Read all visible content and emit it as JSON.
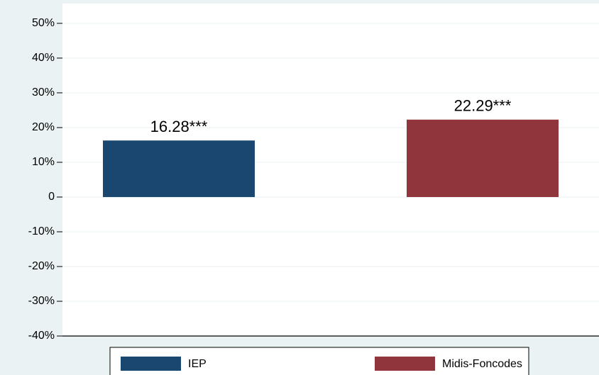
{
  "chart_data": {
    "type": "bar",
    "series": [
      {
        "name": "IEP",
        "color": "#1a476f",
        "values": [
          16.28
        ],
        "value_labels": [
          "16.28***"
        ]
      },
      {
        "name": "Midis-Foncodes",
        "color": "#90353b",
        "values": [
          22.29
        ],
        "value_labels": [
          "22.29***"
        ]
      }
    ],
    "ylim": [
      -40,
      55.7
    ],
    "yticks": [
      {
        "value": 50,
        "label": "50%"
      },
      {
        "value": 40,
        "label": "40%"
      },
      {
        "value": 30,
        "label": "30%"
      },
      {
        "value": 20,
        "label": "20%"
      },
      {
        "value": 10,
        "label": "10%"
      },
      0,
      {
        "value": -10,
        "label": "-10%"
      },
      {
        "value": -20,
        "label": "-20%"
      },
      {
        "value": -30,
        "label": "-30%"
      },
      {
        "value": -40,
        "label": "-40%"
      }
    ],
    "grid": true
  }
}
